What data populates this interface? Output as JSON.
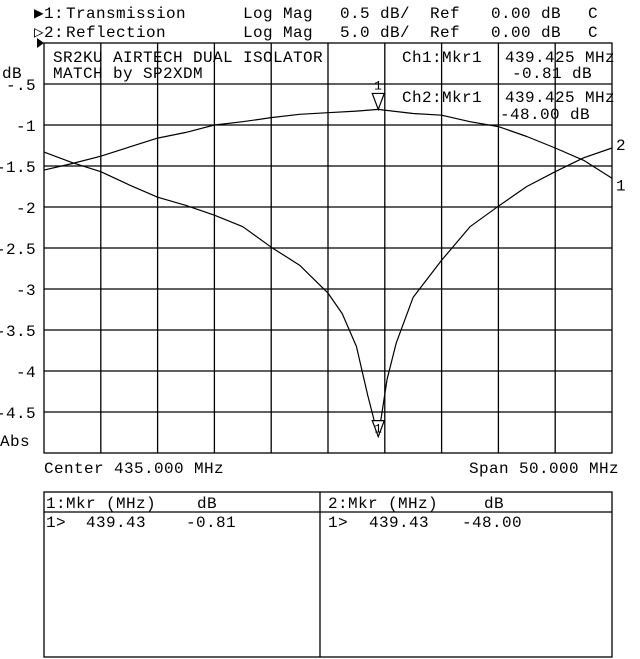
{
  "header": {
    "ch1": {
      "indicator": "▶1:",
      "name": "Transmission",
      "format": "Log Mag",
      "scale": "0.5 dB/",
      "ref_label": "Ref",
      "ref": "0.00 dB",
      "flag": "C"
    },
    "ch2": {
      "indicator": "▷2:",
      "name": "Reflection",
      "format": "Log Mag",
      "scale": "5.0 dB/",
      "ref_label": "Ref",
      "ref": "0.00 dB",
      "flag": "C"
    }
  },
  "annotation": {
    "line1": "SR2KU AIRTECH DUAL ISOLATOR",
    "line2": "MATCH by SP2XDM"
  },
  "marker_readout": {
    "ch1": {
      "label": "Ch1:Mkr1",
      "freq": "439.425 MHz",
      "value": "-0.81 dB"
    },
    "ch2": {
      "label": "Ch2:Mkr1",
      "freq": "439.425 MHz",
      "value": "-48.00 dB"
    }
  },
  "axis": {
    "unit": "dB",
    "mode": "Abs",
    "center": "Center 435.000 MHz",
    "span": "Span 50.000 MHz"
  },
  "marker_table": {
    "ch1": {
      "header_mkr": "1:Mkr (MHz)",
      "header_db": "dB",
      "rows": [
        {
          "id": "1>",
          "freq": "439.43",
          "db": "-0.81"
        }
      ]
    },
    "ch2": {
      "header_mkr": "2:Mkr (MHz)",
      "header_db": "dB",
      "rows": [
        {
          "id": "1>",
          "freq": "439.43",
          "db": "-48.00"
        }
      ]
    }
  },
  "chart_data": {
    "type": "line",
    "xlabel": "",
    "ylabel": "dB",
    "xlim": [
      410,
      460
    ],
    "ylim": [
      -5,
      0
    ],
    "grid": true,
    "y_ticks": [
      -0.5,
      -1,
      -1.5,
      -2,
      -2.5,
      -3,
      -3.5,
      -4,
      -4.5
    ],
    "y_tick_labels": [
      "-.5",
      "-1",
      "-1.5",
      "-2",
      "-2.5",
      "-3",
      "-3.5",
      "-4",
      "-4.5"
    ],
    "x_divisions": 10,
    "marker": {
      "label": "1",
      "freq_mhz": 439.425
    },
    "series": [
      {
        "name": "1",
        "channel": "Transmission",
        "scale_db_per_div": 0.5,
        "ylim": [
          -5,
          0
        ],
        "x": [
          410,
          412.5,
          415,
          417.5,
          420,
          422.5,
          425,
          427.5,
          430,
          432.5,
          435,
          437.5,
          439.425,
          442.5,
          445,
          447.5,
          450,
          452.5,
          455,
          457.5,
          460
        ],
        "y": [
          -1.55,
          -1.47,
          -1.38,
          -1.27,
          -1.16,
          -1.09,
          -1.0,
          -0.96,
          -0.91,
          -0.87,
          -0.85,
          -0.83,
          -0.81,
          -0.86,
          -0.88,
          -0.96,
          -1.02,
          -1.14,
          -1.28,
          -1.43,
          -1.65
        ]
      },
      {
        "name": "2",
        "channel": "Reflection",
        "scale_db_per_div": 5.0,
        "ylim": [
          -50,
          0
        ],
        "x": [
          410,
          412.5,
          415,
          417.5,
          420,
          422.5,
          425,
          427.5,
          430,
          432.5,
          435,
          436.25,
          437.5,
          438.5,
          439.425,
          440.2,
          441,
          442.5,
          445,
          447.5,
          450,
          452.5,
          455,
          457.5,
          460
        ],
        "y": [
          -13.3,
          -14.6,
          -15.7,
          -17.3,
          -18.8,
          -19.8,
          -21.0,
          -22.4,
          -24.9,
          -27.1,
          -30.5,
          -33.0,
          -37.0,
          -43.0,
          -48.0,
          -41.0,
          -36.6,
          -31.0,
          -26.5,
          -22.4,
          -19.9,
          -17.5,
          -15.7,
          -14.0,
          -12.8
        ]
      }
    ]
  }
}
